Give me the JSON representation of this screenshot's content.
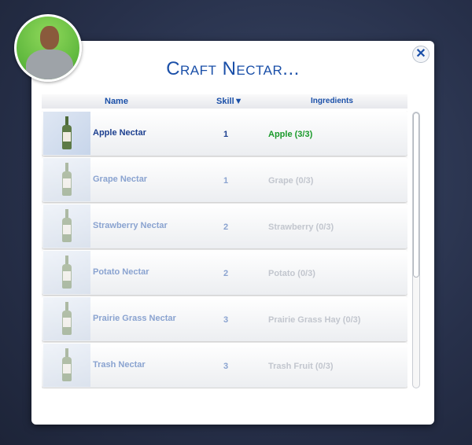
{
  "dialog": {
    "title": "Craft Nectar...",
    "close_icon": "close-x-icon"
  },
  "columns": {
    "name": "Name",
    "skill": "Skill",
    "sort_indicator": "▼",
    "ingredients": "Ingredients"
  },
  "colors": {
    "title": "#1a4fa8",
    "available": "#1a9a2a",
    "unavailable": "#c2c6ce"
  },
  "recipes": [
    {
      "name": "Apple Nectar",
      "skill": "1",
      "ingredients": "Apple (3/3)",
      "available": true
    },
    {
      "name": "Grape Nectar",
      "skill": "1",
      "ingredients": "Grape (0/3)",
      "available": false
    },
    {
      "name": "Strawberry Nectar",
      "skill": "2",
      "ingredients": "Strawberry (0/3)",
      "available": false
    },
    {
      "name": "Potato Nectar",
      "skill": "2",
      "ingredients": "Potato (0/3)",
      "available": false
    },
    {
      "name": "Prairie Grass Nectar",
      "skill": "3",
      "ingredients": "Prairie Grass Hay (0/3)",
      "available": false
    },
    {
      "name": "Trash Nectar",
      "skill": "3",
      "ingredients": "Trash Fruit (0/3)",
      "available": false
    }
  ]
}
